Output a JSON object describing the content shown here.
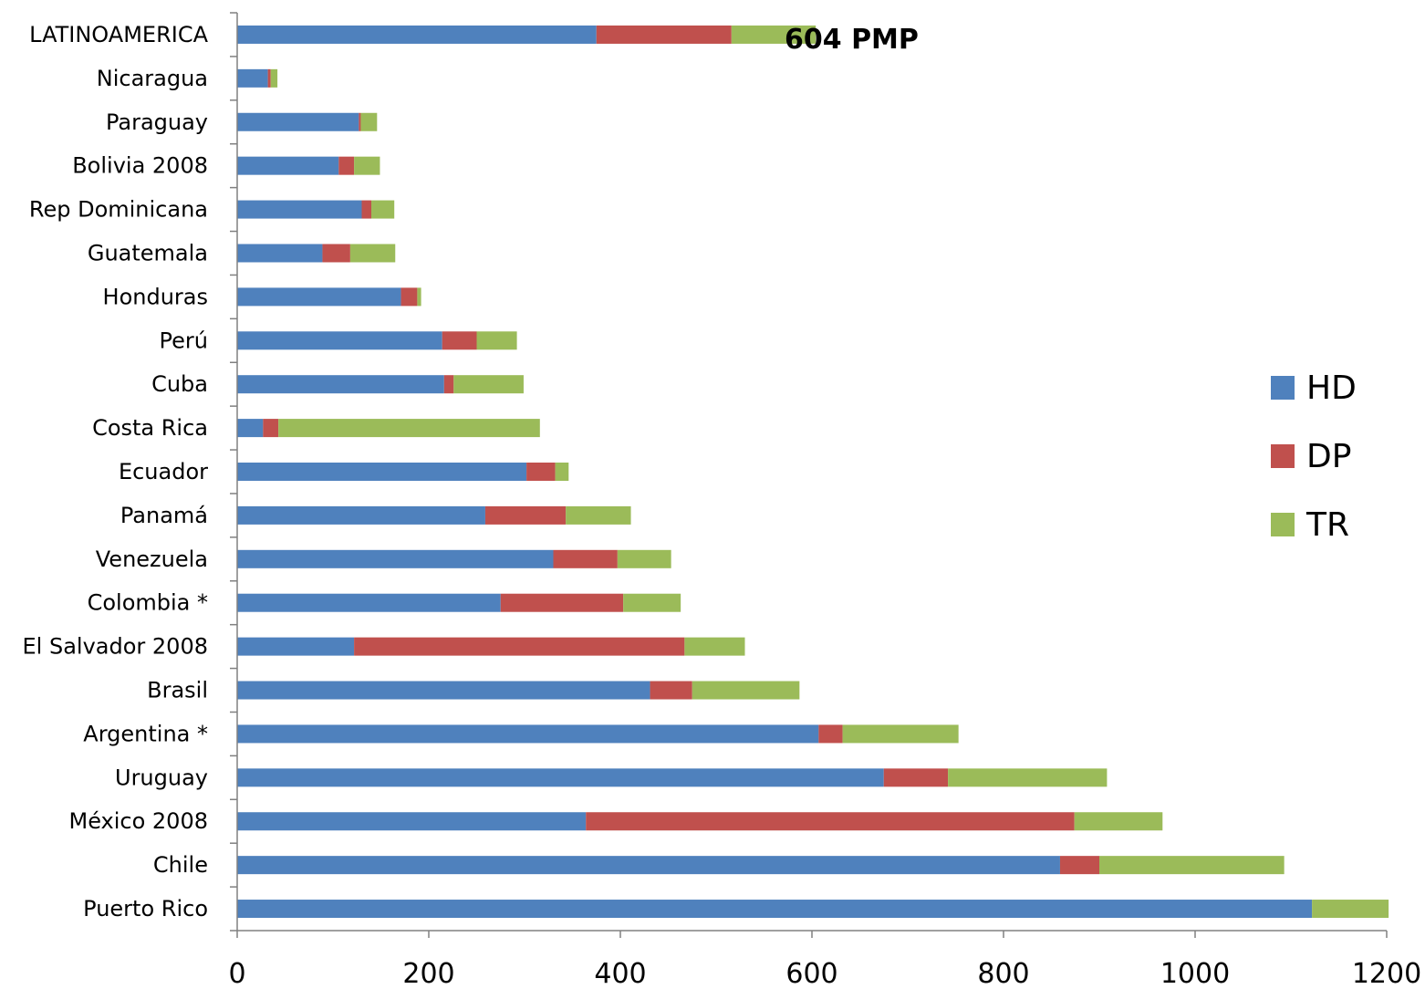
{
  "chart_data": {
    "type": "bar",
    "orientation": "horizontal",
    "stacked": true,
    "categories": [
      "LATINOAMERICA",
      "Nicaragua",
      "Paraguay",
      "Bolivia  2008",
      "Rep Dominicana",
      "Guatemala",
      "Honduras",
      "Perú",
      "Cuba",
      "Costa Rica",
      "Ecuador",
      "Panamá",
      "Venezuela",
      "Colombia *",
      "El Salvador 2008",
      "Brasil",
      "Argentina *",
      "Uruguay",
      "México  2008",
      "Chile",
      "Puerto Rico"
    ],
    "series": [
      {
        "name": "HD",
        "color": "#4F81BD",
        "values": [
          375,
          32,
          127,
          106,
          130,
          89,
          171,
          214,
          216,
          27,
          302,
          259,
          330,
          275,
          122,
          431,
          607,
          675,
          364,
          859,
          1122
        ]
      },
      {
        "name": "DP",
        "color": "#C0504D",
        "values": [
          141,
          3,
          2,
          16,
          10,
          29,
          17,
          36,
          10,
          16,
          30,
          84,
          67,
          128,
          345,
          44,
          25,
          67,
          510,
          41,
          0
        ]
      },
      {
        "name": "TR",
        "color": "#9BBB59",
        "values": [
          88,
          7,
          17,
          27,
          24,
          47,
          4,
          42,
          73,
          273,
          14,
          68,
          56,
          60,
          63,
          112,
          121,
          166,
          92,
          193,
          80
        ]
      }
    ],
    "xlim": [
      0,
      1200
    ],
    "xticks": [
      "0",
      "200",
      "400",
      "600",
      "800",
      "1000",
      "1200"
    ],
    "legend": {
      "position": "right",
      "entries": [
        "HD",
        "DP",
        "TR"
      ]
    },
    "annotation": "604 PMP",
    "grid": false,
    "title": "",
    "xlabel": "",
    "ylabel": ""
  }
}
